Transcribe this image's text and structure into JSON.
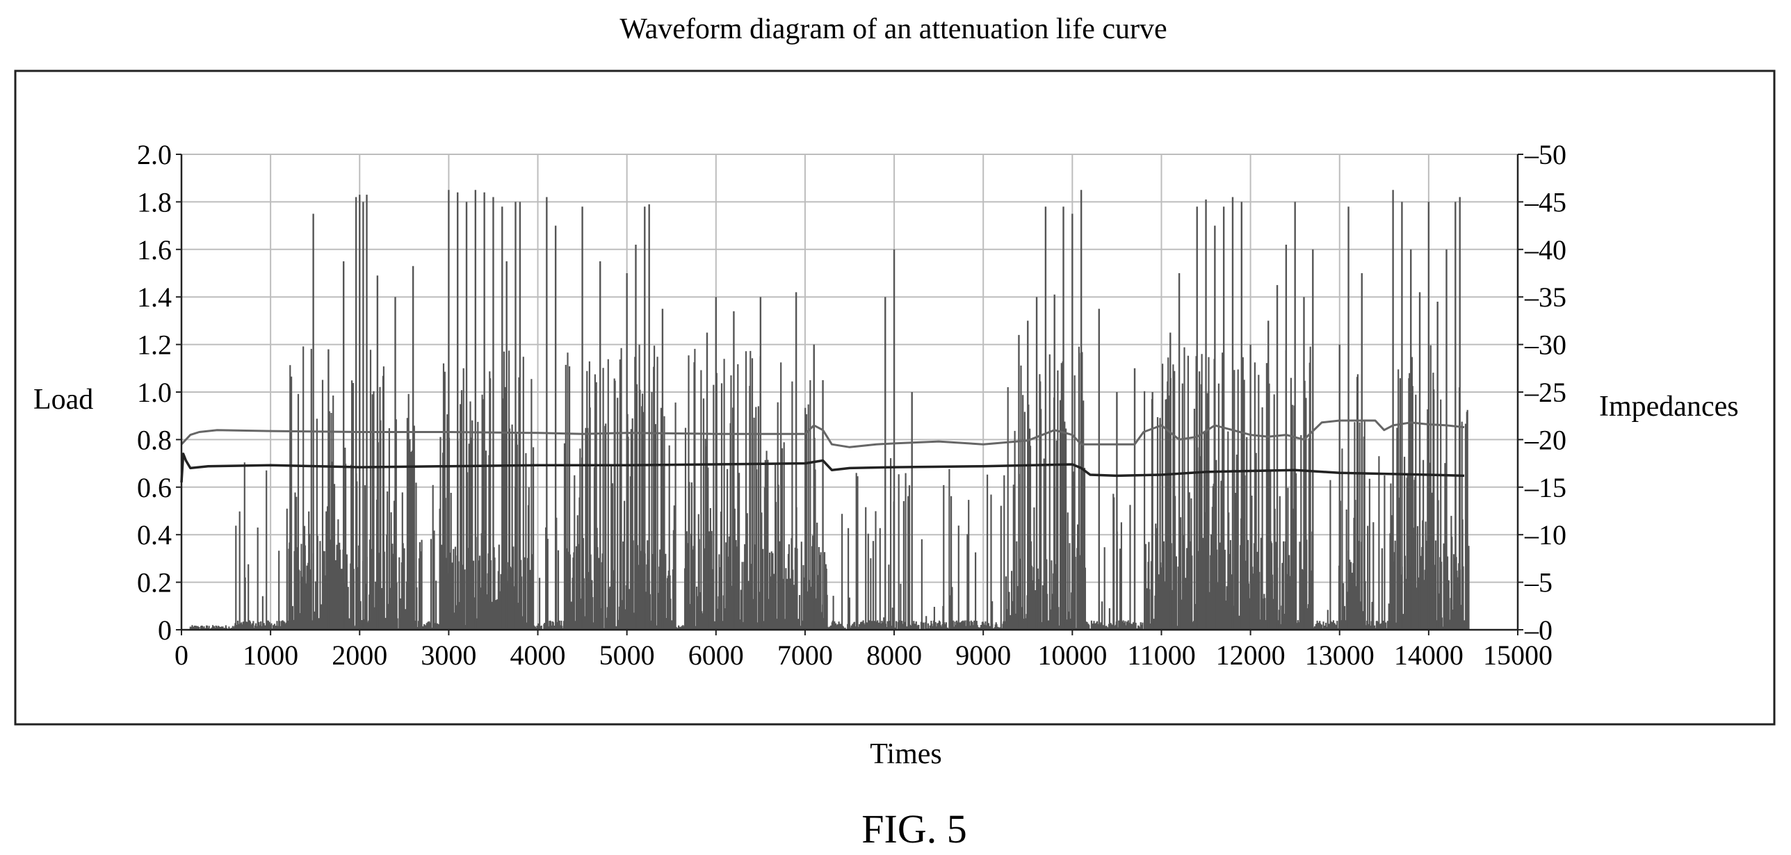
{
  "chart_data": {
    "type": "line",
    "title": "Waveform diagram of an attenuation life curve",
    "xlabel": "Times",
    "ylabel_left": "Load",
    "ylabel_right": "Impedances",
    "xlim": [
      0,
      15000
    ],
    "ylim_left": [
      0,
      2.0
    ],
    "ylim_right": [
      0,
      -50
    ],
    "x_ticks": [
      "0",
      "1000",
      "2000",
      "3000",
      "4000",
      "5000",
      "6000",
      "7000",
      "8000",
      "9000",
      "10000",
      "11000",
      "12000",
      "13000",
      "14000",
      "15000"
    ],
    "y_ticks_left": [
      "0",
      "0.2",
      "0.4",
      "0.6",
      "0.8",
      "1.0",
      "1.2",
      "1.4",
      "1.6",
      "1.8",
      "2.0"
    ],
    "y_ticks_right": [
      "–0",
      "–5",
      "–10",
      "–15",
      "–20",
      "–25",
      "–30",
      "–35",
      "–40",
      "–45",
      "–50"
    ],
    "grid": true,
    "legend": "none",
    "series": [
      {
        "axis": "left",
        "style": "bars",
        "color": "#555555",
        "dense_bands": [
          [
            1200,
            2700
          ],
          [
            2900,
            3950
          ],
          [
            4300,
            5550
          ],
          [
            5650,
            7250
          ],
          [
            9250,
            10150
          ],
          [
            10800,
            11900
          ],
          [
            11900,
            12700
          ],
          [
            13000,
            13300
          ],
          [
            13550,
            14450
          ]
        ],
        "sparse_bands": [
          [
            600,
            1200
          ],
          [
            2700,
            2900
          ],
          [
            4000,
            4300
          ],
          [
            7300,
            9250
          ],
          [
            10150,
            10800
          ],
          [
            12700,
            13000
          ],
          [
            13300,
            13550
          ]
        ],
        "peaks": [
          [
            1480,
            1.75
          ],
          [
            1650,
            1.18
          ],
          [
            1820,
            1.55
          ],
          [
            1960,
            1.82
          ],
          [
            2000,
            1.83
          ],
          [
            2040,
            1.8
          ],
          [
            2080,
            1.83
          ],
          [
            2200,
            1.49
          ],
          [
            2400,
            1.4
          ],
          [
            2600,
            1.53
          ],
          [
            3000,
            1.85
          ],
          [
            3100,
            1.84
          ],
          [
            3200,
            1.8
          ],
          [
            3300,
            1.85
          ],
          [
            3400,
            1.84
          ],
          [
            3500,
            1.82
          ],
          [
            3600,
            1.78
          ],
          [
            3650,
            1.55
          ],
          [
            3750,
            1.8
          ],
          [
            3800,
            1.8
          ],
          [
            4100,
            1.82
          ],
          [
            4200,
            1.7
          ],
          [
            4500,
            1.78
          ],
          [
            4700,
            1.55
          ],
          [
            5000,
            1.5
          ],
          [
            5100,
            1.62
          ],
          [
            5200,
            1.78
          ],
          [
            5250,
            1.79
          ],
          [
            5400,
            1.35
          ],
          [
            5900,
            1.25
          ],
          [
            6000,
            1.4
          ],
          [
            6200,
            1.34
          ],
          [
            6500,
            1.4
          ],
          [
            6900,
            1.42
          ],
          [
            7100,
            1.2
          ],
          [
            7200,
            1.05
          ],
          [
            7900,
            1.4
          ],
          [
            8000,
            1.6
          ],
          [
            8200,
            1.0
          ],
          [
            8550,
            0.1
          ],
          [
            8650,
            0.18
          ],
          [
            9100,
            0.12
          ],
          [
            9400,
            1.24
          ],
          [
            9500,
            1.3
          ],
          [
            9600,
            1.4
          ],
          [
            9700,
            1.78
          ],
          [
            9800,
            1.41
          ],
          [
            9900,
            1.78
          ],
          [
            10000,
            1.75
          ],
          [
            10100,
            1.85
          ],
          [
            10300,
            1.35
          ],
          [
            10500,
            1.0
          ],
          [
            10700,
            1.1
          ],
          [
            10900,
            1.0
          ],
          [
            11100,
            1.25
          ],
          [
            11200,
            1.5
          ],
          [
            11400,
            1.78
          ],
          [
            11500,
            1.81
          ],
          [
            11600,
            1.7
          ],
          [
            11700,
            1.78
          ],
          [
            11800,
            1.82
          ],
          [
            11900,
            1.8
          ],
          [
            12000,
            1.2
          ],
          [
            12200,
            1.3
          ],
          [
            12300,
            1.45
          ],
          [
            12400,
            1.62
          ],
          [
            12500,
            1.8
          ],
          [
            12600,
            1.4
          ],
          [
            12700,
            1.6
          ],
          [
            13000,
            1.2
          ],
          [
            13100,
            1.78
          ],
          [
            13250,
            1.5
          ],
          [
            13600,
            1.85
          ],
          [
            13700,
            1.8
          ],
          [
            13800,
            1.6
          ],
          [
            13900,
            1.42
          ],
          [
            14000,
            1.8
          ],
          [
            14100,
            1.38
          ],
          [
            14200,
            1.6
          ],
          [
            14300,
            1.8
          ],
          [
            14350,
            1.82
          ]
        ]
      },
      {
        "axis": "right",
        "style": "line",
        "color": "#666666",
        "x": [
          0,
          50,
          100,
          200,
          400,
          1000,
          2000,
          3000,
          4000,
          4500,
          5000,
          6000,
          7000,
          7100,
          7200,
          7300,
          7500,
          7800,
          8000,
          8500,
          9000,
          9500,
          9800,
          10000,
          10100,
          10300,
          10500,
          10700,
          10800,
          11000,
          11200,
          11400,
          11600,
          11800,
          12000,
          12200,
          12400,
          12600,
          12800,
          13000,
          13200,
          13400,
          13500,
          13600,
          13800,
          14000,
          14200,
          14400
        ],
        "y": [
          -19.5,
          -20.0,
          -20.5,
          -20.8,
          -21.0,
          -20.9,
          -20.8,
          -20.8,
          -20.7,
          -20.6,
          -20.7,
          -20.6,
          -20.6,
          -21.5,
          -21.0,
          -19.5,
          -19.2,
          -19.5,
          -19.6,
          -19.8,
          -19.5,
          -19.9,
          -21.0,
          -20.5,
          -19.5,
          -19.5,
          -19.5,
          -19.5,
          -20.8,
          -21.5,
          -20.0,
          -20.3,
          -21.5,
          -21.0,
          -20.5,
          -20.3,
          -20.5,
          -20.0,
          -21.8,
          -22.0,
          -22.0,
          -22.0,
          -21.0,
          -21.5,
          -21.8,
          -21.6,
          -21.5,
          -21.3
        ]
      },
      {
        "axis": "right",
        "style": "line",
        "color": "#222222",
        "x": [
          0,
          20,
          50,
          100,
          300,
          1000,
          2000,
          3000,
          4000,
          5000,
          6000,
          7000,
          7200,
          7300,
          7500,
          8000,
          9000,
          10000,
          10100,
          10200,
          10500,
          11000,
          11500,
          12000,
          12500,
          13000,
          13500,
          14000,
          14400
        ],
        "y": [
          -15.5,
          -18.5,
          -17.8,
          -17.0,
          -17.2,
          -17.3,
          -17.1,
          -17.2,
          -17.3,
          -17.3,
          -17.4,
          -17.5,
          -17.8,
          -16.8,
          -17.0,
          -17.1,
          -17.2,
          -17.4,
          -17.0,
          -16.3,
          -16.2,
          -16.3,
          -16.6,
          -16.7,
          -16.8,
          -16.5,
          -16.4,
          -16.3,
          -16.2
        ]
      }
    ]
  },
  "figure_label": "FIG. 5"
}
